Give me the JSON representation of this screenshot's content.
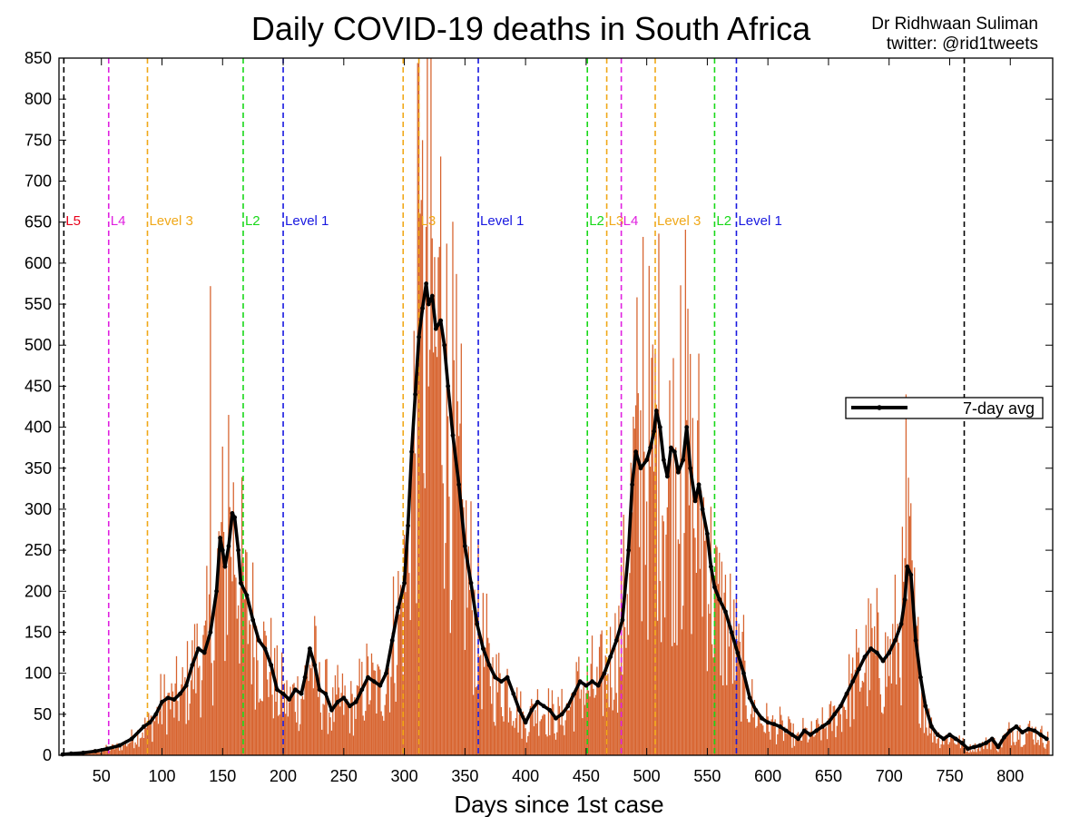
{
  "chart_data": {
    "type": "bar",
    "title": "Daily COVID-19 deaths in South Africa",
    "credit": [
      "Dr Ridhwaan Suliman",
      "twitter: @rid1tweets"
    ],
    "xlabel": "Days since 1st case",
    "ylabel": "",
    "xlim": [
      15,
      835
    ],
    "ylim": [
      0,
      850
    ],
    "xticks": [
      50,
      100,
      150,
      200,
      250,
      300,
      350,
      400,
      450,
      500,
      550,
      600,
      650,
      700,
      750,
      800
    ],
    "yticks": [
      0,
      50,
      100,
      150,
      200,
      250,
      300,
      350,
      400,
      450,
      500,
      550,
      600,
      650,
      700,
      750,
      800,
      850
    ],
    "grid": false,
    "legend": {
      "position": "right",
      "entries": [
        "7-day avg"
      ]
    },
    "bar_color": "#d4561c",
    "avg_color": "#000000",
    "series": [
      {
        "name": "7-day avg",
        "type": "line",
        "points": [
          [
            18,
            1
          ],
          [
            25,
            2
          ],
          [
            35,
            3
          ],
          [
            45,
            5
          ],
          [
            55,
            8
          ],
          [
            65,
            12
          ],
          [
            75,
            20
          ],
          [
            85,
            35
          ],
          [
            90,
            40
          ],
          [
            95,
            50
          ],
          [
            100,
            65
          ],
          [
            105,
            70
          ],
          [
            110,
            68
          ],
          [
            115,
            75
          ],
          [
            120,
            85
          ],
          [
            125,
            110
          ],
          [
            130,
            130
          ],
          [
            135,
            125
          ],
          [
            140,
            150
          ],
          [
            145,
            200
          ],
          [
            148,
            265
          ],
          [
            150,
            250
          ],
          [
            152,
            230
          ],
          [
            155,
            255
          ],
          [
            158,
            295
          ],
          [
            160,
            290
          ],
          [
            163,
            250
          ],
          [
            165,
            210
          ],
          [
            170,
            195
          ],
          [
            175,
            165
          ],
          [
            180,
            140
          ],
          [
            185,
            130
          ],
          [
            190,
            110
          ],
          [
            195,
            80
          ],
          [
            200,
            75
          ],
          [
            205,
            68
          ],
          [
            210,
            80
          ],
          [
            215,
            75
          ],
          [
            218,
            95
          ],
          [
            222,
            130
          ],
          [
            226,
            110
          ],
          [
            230,
            80
          ],
          [
            235,
            75
          ],
          [
            240,
            55
          ],
          [
            245,
            65
          ],
          [
            250,
            70
          ],
          [
            255,
            60
          ],
          [
            260,
            65
          ],
          [
            265,
            80
          ],
          [
            270,
            95
          ],
          [
            275,
            90
          ],
          [
            280,
            85
          ],
          [
            285,
            100
          ],
          [
            290,
            140
          ],
          [
            295,
            180
          ],
          [
            300,
            210
          ],
          [
            303,
            280
          ],
          [
            306,
            370
          ],
          [
            309,
            440
          ],
          [
            312,
            510
          ],
          [
            315,
            545
          ],
          [
            318,
            575
          ],
          [
            320,
            550
          ],
          [
            323,
            560
          ],
          [
            326,
            520
          ],
          [
            330,
            530
          ],
          [
            333,
            500
          ],
          [
            336,
            450
          ],
          [
            340,
            390
          ],
          [
            345,
            330
          ],
          [
            350,
            255
          ],
          [
            355,
            210
          ],
          [
            360,
            160
          ],
          [
            365,
            130
          ],
          [
            370,
            110
          ],
          [
            375,
            95
          ],
          [
            380,
            90
          ],
          [
            385,
            95
          ],
          [
            390,
            75
          ],
          [
            395,
            55
          ],
          [
            400,
            40
          ],
          [
            405,
            55
          ],
          [
            410,
            65
          ],
          [
            415,
            60
          ],
          [
            420,
            55
          ],
          [
            425,
            45
          ],
          [
            430,
            50
          ],
          [
            435,
            60
          ],
          [
            440,
            75
          ],
          [
            445,
            90
          ],
          [
            450,
            85
          ],
          [
            455,
            90
          ],
          [
            460,
            85
          ],
          [
            465,
            100
          ],
          [
            470,
            120
          ],
          [
            475,
            140
          ],
          [
            480,
            165
          ],
          [
            485,
            250
          ],
          [
            488,
            330
          ],
          [
            491,
            370
          ],
          [
            495,
            350
          ],
          [
            500,
            360
          ],
          [
            503,
            375
          ],
          [
            506,
            395
          ],
          [
            508,
            420
          ],
          [
            511,
            400
          ],
          [
            514,
            360
          ],
          [
            517,
            340
          ],
          [
            520,
            375
          ],
          [
            523,
            370
          ],
          [
            526,
            345
          ],
          [
            530,
            360
          ],
          [
            533,
            400
          ],
          [
            536,
            350
          ],
          [
            540,
            310
          ],
          [
            543,
            330
          ],
          [
            546,
            300
          ],
          [
            550,
            270
          ],
          [
            553,
            230
          ],
          [
            556,
            205
          ],
          [
            560,
            190
          ],
          [
            565,
            175
          ],
          [
            570,
            150
          ],
          [
            575,
            125
          ],
          [
            580,
            100
          ],
          [
            585,
            70
          ],
          [
            590,
            55
          ],
          [
            595,
            45
          ],
          [
            600,
            40
          ],
          [
            605,
            38
          ],
          [
            610,
            35
          ],
          [
            615,
            30
          ],
          [
            620,
            25
          ],
          [
            625,
            20
          ],
          [
            630,
            30
          ],
          [
            635,
            25
          ],
          [
            640,
            30
          ],
          [
            645,
            35
          ],
          [
            650,
            40
          ],
          [
            655,
            50
          ],
          [
            660,
            60
          ],
          [
            665,
            75
          ],
          [
            670,
            90
          ],
          [
            675,
            105
          ],
          [
            680,
            120
          ],
          [
            685,
            130
          ],
          [
            690,
            125
          ],
          [
            695,
            115
          ],
          [
            700,
            125
          ],
          [
            705,
            140
          ],
          [
            710,
            160
          ],
          [
            713,
            190
          ],
          [
            715,
            230
          ],
          [
            718,
            220
          ],
          [
            722,
            140
          ],
          [
            726,
            95
          ],
          [
            730,
            60
          ],
          [
            735,
            35
          ],
          [
            740,
            25
          ],
          [
            745,
            20
          ],
          [
            750,
            25
          ],
          [
            755,
            20
          ],
          [
            760,
            15
          ],
          [
            765,
            8
          ],
          [
            770,
            10
          ],
          [
            775,
            12
          ],
          [
            780,
            15
          ],
          [
            785,
            20
          ],
          [
            790,
            10
          ],
          [
            795,
            22
          ],
          [
            800,
            30
          ],
          [
            805,
            35
          ],
          [
            810,
            28
          ],
          [
            815,
            32
          ],
          [
            820,
            30
          ],
          [
            825,
            25
          ],
          [
            830,
            20
          ]
        ]
      }
    ],
    "lockdown_lines": [
      {
        "x": 19,
        "label": "L5",
        "color": "#000000",
        "label_color": "#e8001a"
      },
      {
        "x": 56,
        "label": "L4",
        "color": "#e020e0",
        "label_color": "#e020e0"
      },
      {
        "x": 88,
        "label": "Level 3",
        "color": "#f0a818",
        "label_color": "#f0a818"
      },
      {
        "x": 167,
        "label": "L2",
        "color": "#18d818",
        "label_color": "#18d818"
      },
      {
        "x": 200,
        "label": "Level 1",
        "color": "#1818e0",
        "label_color": "#1818e0"
      },
      {
        "x": 299,
        "label": "",
        "color": "#f0a818",
        "label_color": "#f0a818"
      },
      {
        "x": 312,
        "label": "L3",
        "color": "#f0a818",
        "label_color": "#f0a818"
      },
      {
        "x": 361,
        "label": "Level 1",
        "color": "#1818e0",
        "label_color": "#1818e0"
      },
      {
        "x": 451,
        "label": "L2",
        "color": "#18d818",
        "label_color": "#18d818"
      },
      {
        "x": 467,
        "label": "L3",
        "color": "#f0a818",
        "label_color": "#f0a818"
      },
      {
        "x": 479,
        "label": "L4",
        "color": "#e020e0",
        "label_color": "#e020e0"
      },
      {
        "x": 507,
        "label": "Level 3",
        "color": "#f0a818",
        "label_color": "#f0a818"
      },
      {
        "x": 556,
        "label": "L2",
        "color": "#18d818",
        "label_color": "#18d818"
      },
      {
        "x": 574,
        "label": "Level 1",
        "color": "#1818e0",
        "label_color": "#1818e0"
      },
      {
        "x": 762,
        "label": "",
        "color": "#000000",
        "label_color": "#000000"
      }
    ],
    "notable_daily_peaks": [
      [
        140,
        572
      ],
      [
        155,
        415
      ],
      [
        311,
        844
      ],
      [
        315,
        750
      ],
      [
        330,
        730
      ],
      [
        497,
        632
      ],
      [
        528,
        573
      ],
      [
        714,
        440
      ]
    ]
  }
}
